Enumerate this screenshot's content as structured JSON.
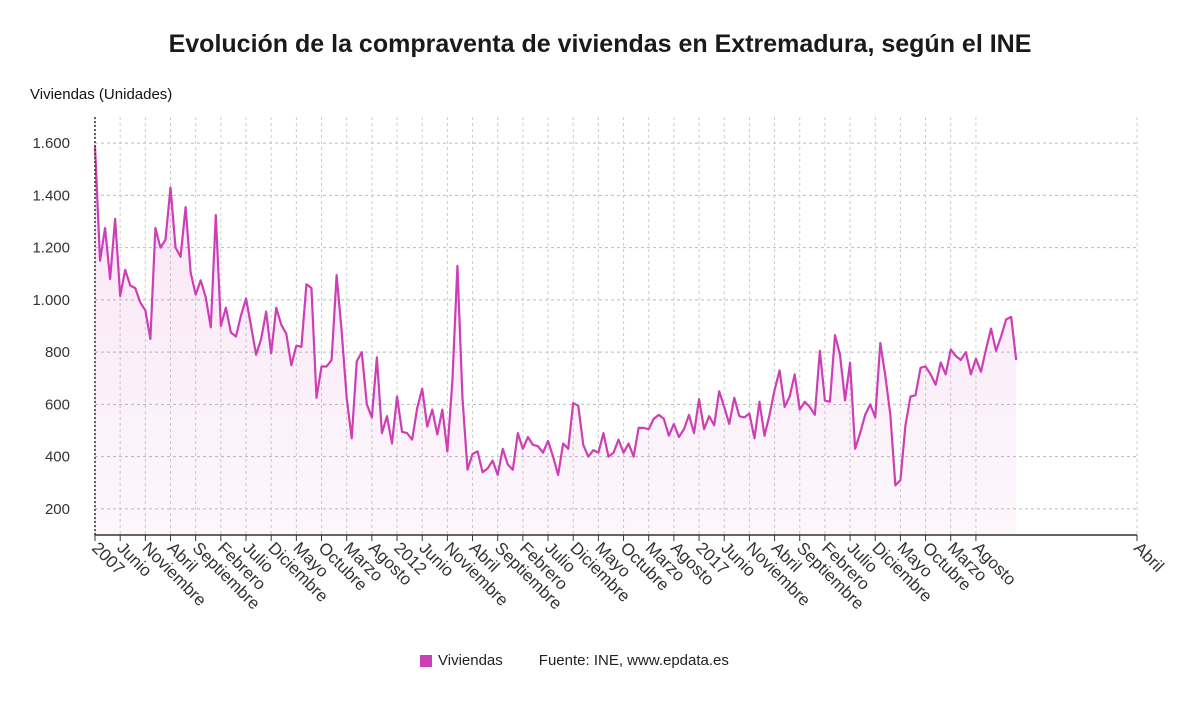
{
  "chart_data": {
    "type": "area",
    "title": "Evolución de la compraventa de viviendas en Extremadura, según el INE",
    "ylabel": "Viviendas (Unidades)",
    "xlabel": "",
    "ylim": [
      100,
      1700
    ],
    "yticks": [
      200,
      400,
      600,
      800,
      1000,
      1200,
      1400,
      1600
    ],
    "ytick_labels": [
      "200",
      "400",
      "600",
      "800",
      "1.000",
      "1.200",
      "1.400",
      "1.600"
    ],
    "grid": true,
    "legend_position": "bottom",
    "color": "#cc3fb5",
    "x_start": "2007-01",
    "x_end": "2024-04",
    "x_tick_labels": [
      {
        "label": "2007",
        "month": "2007-01"
      },
      {
        "label": "Junio",
        "month": "2007-06"
      },
      {
        "label": "Noviembre",
        "month": "2007-11"
      },
      {
        "label": "Abril",
        "month": "2008-04"
      },
      {
        "label": "Septiembre",
        "month": "2008-09"
      },
      {
        "label": "Febrero",
        "month": "2009-02"
      },
      {
        "label": "Julio",
        "month": "2009-07"
      },
      {
        "label": "Diciembre",
        "month": "2009-12"
      },
      {
        "label": "Mayo",
        "month": "2010-05"
      },
      {
        "label": "Octubre",
        "month": "2010-10"
      },
      {
        "label": "Marzo",
        "month": "2011-03"
      },
      {
        "label": "Agosto",
        "month": "2011-08"
      },
      {
        "label": "2012",
        "month": "2012-01"
      },
      {
        "label": "Junio",
        "month": "2012-06"
      },
      {
        "label": "Noviembre",
        "month": "2012-11"
      },
      {
        "label": "Abril",
        "month": "2013-04"
      },
      {
        "label": "Septiembre",
        "month": "2013-09"
      },
      {
        "label": "Febrero",
        "month": "2014-02"
      },
      {
        "label": "Julio",
        "month": "2014-07"
      },
      {
        "label": "Diciembre",
        "month": "2014-12"
      },
      {
        "label": "Mayo",
        "month": "2015-05"
      },
      {
        "label": "Octubre",
        "month": "2015-10"
      },
      {
        "label": "Marzo",
        "month": "2016-03"
      },
      {
        "label": "Agosto",
        "month": "2016-08"
      },
      {
        "label": "2017",
        "month": "2017-01"
      },
      {
        "label": "Junio",
        "month": "2017-06"
      },
      {
        "label": "Noviembre",
        "month": "2017-11"
      },
      {
        "label": "Abril",
        "month": "2018-04"
      },
      {
        "label": "Septiembre",
        "month": "2018-09"
      },
      {
        "label": "Febrero",
        "month": "2019-02"
      },
      {
        "label": "Julio",
        "month": "2019-07"
      },
      {
        "label": "Diciembre",
        "month": "2019-12"
      },
      {
        "label": "Mayo",
        "month": "2020-05"
      },
      {
        "label": "Octubre",
        "month": "2020-10"
      },
      {
        "label": "Marzo",
        "month": "2021-03"
      },
      {
        "label": "Agosto",
        "month": "2021-08"
      },
      {
        "label": "Abril",
        "month": "2024-04"
      }
    ],
    "series": [
      {
        "name": "Viviendas",
        "values": [
          1590,
          1150,
          1275,
          1080,
          1310,
          1015,
          1115,
          1055,
          1045,
          990,
          960,
          850,
          1275,
          1200,
          1230,
          1430,
          1200,
          1165,
          1355,
          1105,
          1020,
          1075,
          1010,
          895,
          1325,
          900,
          970,
          875,
          860,
          940,
          1005,
          900,
          790,
          850,
          955,
          795,
          970,
          905,
          870,
          750,
          825,
          820,
          1060,
          1045,
          625,
          745,
          745,
          770,
          1095,
          880,
          625,
          470,
          765,
          800,
          600,
          550,
          780,
          490,
          555,
          450,
          630,
          495,
          490,
          465,
          585,
          660,
          515,
          580,
          485,
          580,
          420,
          690,
          1130,
          625,
          350,
          410,
          420,
          340,
          355,
          385,
          330,
          430,
          370,
          350,
          490,
          430,
          475,
          445,
          440,
          415,
          460,
          400,
          330,
          450,
          430,
          605,
          595,
          445,
          400,
          425,
          415,
          490,
          400,
          415,
          465,
          415,
          450,
          400,
          510,
          510,
          505,
          545,
          560,
          545,
          480,
          525,
          475,
          505,
          560,
          490,
          620,
          505,
          555,
          520,
          650,
          590,
          525,
          625,
          555,
          550,
          565,
          470,
          610,
          480,
          560,
          655,
          730,
          590,
          630,
          715,
          580,
          610,
          590,
          560,
          805,
          615,
          610,
          865,
          790,
          615,
          760,
          430,
          490,
          560,
          600,
          550,
          835,
          710,
          560,
          290,
          310,
          520,
          630,
          635,
          740,
          745,
          715,
          675,
          760,
          715,
          810,
          785,
          770,
          800,
          715,
          775,
          725,
          810,
          890,
          805,
          860,
          925,
          935,
          770
        ]
      }
    ]
  },
  "legend": {
    "series_label": "Viviendas",
    "source": "Fuente: INE, www.epdata.es"
  }
}
